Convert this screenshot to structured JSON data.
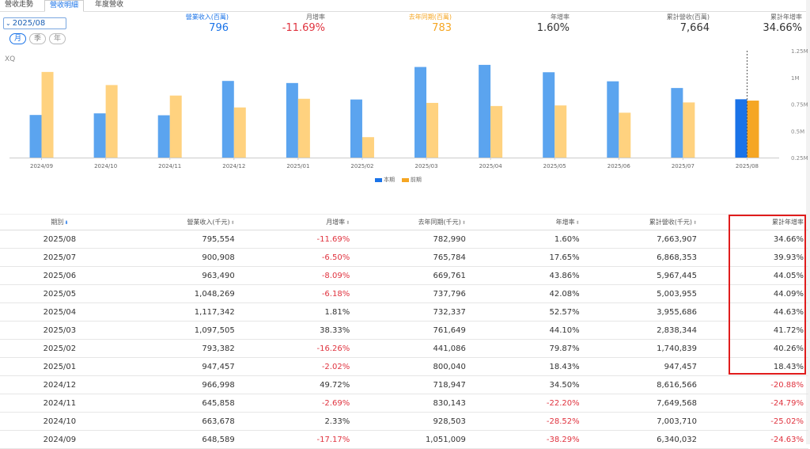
{
  "tabs": [
    "營收走勢",
    "營收明細",
    "年度營收"
  ],
  "period_select": "2025/08",
  "period_modes": [
    "月",
    "季",
    "年"
  ],
  "kpis": [
    {
      "label": "營業收入(百萬)",
      "value": "796",
      "color": "#1a73e8",
      "label_color": "#1a73e8"
    },
    {
      "label": "月增率",
      "value": "-11.69%",
      "color": "#e0333f",
      "label_color": "#666"
    },
    {
      "label": "去年同期(百萬)",
      "value": "783",
      "color": "#f5a623",
      "label_color": "#f5a623"
    },
    {
      "label": "年增率",
      "value": "1.60%",
      "color": "#333",
      "label_color": "#666"
    },
    {
      "label": "累計營收(百萬)",
      "value": "7,664",
      "color": "#333",
      "label_color": "#666"
    },
    {
      "label": "累計年增率",
      "value": "34.66%",
      "color": "#333",
      "label_color": "#666"
    }
  ],
  "xq_label": "XQ",
  "chart_data": {
    "type": "bar",
    "categories": [
      "2024/09",
      "2024/10",
      "2024/11",
      "2024/12",
      "2025/01",
      "2025/02",
      "2025/03",
      "2025/04",
      "2025/05",
      "2025/06",
      "2025/07",
      "2025/08"
    ],
    "series": [
      {
        "name": "本期",
        "color": "#5ba4ef",
        "highlight_color": "#1a73e8",
        "values": [
          648.589,
          663.678,
          645.858,
          966.998,
          947.457,
          793.382,
          1097.505,
          1117.342,
          1048.269,
          963.49,
          900.908,
          795.554
        ]
      },
      {
        "name": "前期",
        "color": "#ffd27f",
        "highlight_color": "#f5a623",
        "values": [
          1051.009,
          928.503,
          830.143,
          718.947,
          800.04,
          441.086,
          761.649,
          732.337,
          737.796,
          669.761,
          765.784,
          782.99
        ]
      }
    ],
    "y_ticks": [
      "1.25M",
      "1M",
      "0.75M",
      "0.5M",
      "0.25M"
    ],
    "y_tick_values": [
      1250,
      1000,
      750,
      500,
      250
    ],
    "ylim": [
      250,
      1250
    ],
    "highlight_index": 11
  },
  "table": {
    "headers": [
      "期別",
      "營業收入(千元)",
      "月增率",
      "去年同期(千元)",
      "年增率",
      "累計營收(千元)",
      "累計年增率"
    ],
    "rows": [
      [
        "2025/08",
        "795,554",
        "-11.69%",
        "782,990",
        "1.60%",
        "7,663,907",
        "34.66%"
      ],
      [
        "2025/07",
        "900,908",
        "-6.50%",
        "765,784",
        "17.65%",
        "6,868,353",
        "39.93%"
      ],
      [
        "2025/06",
        "963,490",
        "-8.09%",
        "669,761",
        "43.86%",
        "5,967,445",
        "44.05%"
      ],
      [
        "2025/05",
        "1,048,269",
        "-6.18%",
        "737,796",
        "42.08%",
        "5,003,955",
        "44.09%"
      ],
      [
        "2025/04",
        "1,117,342",
        "1.81%",
        "732,337",
        "52.57%",
        "3,955,686",
        "44.63%"
      ],
      [
        "2025/03",
        "1,097,505",
        "38.33%",
        "761,649",
        "44.10%",
        "2,838,344",
        "41.72%"
      ],
      [
        "2025/02",
        "793,382",
        "-16.26%",
        "441,086",
        "79.87%",
        "1,740,839",
        "40.26%"
      ],
      [
        "2025/01",
        "947,457",
        "-2.02%",
        "800,040",
        "18.43%",
        "947,457",
        "18.43%"
      ],
      [
        "2024/12",
        "966,998",
        "49.72%",
        "718,947",
        "34.50%",
        "8,616,566",
        "-20.88%"
      ],
      [
        "2024/11",
        "645,858",
        "-2.69%",
        "830,143",
        "-22.20%",
        "7,649,568",
        "-24.79%"
      ],
      [
        "2024/10",
        "663,678",
        "2.33%",
        "928,503",
        "-28.52%",
        "7,003,710",
        "-25.02%"
      ],
      [
        "2024/09",
        "648,589",
        "-17.17%",
        "1,051,009",
        "-38.29%",
        "6,340,032",
        "-24.63%"
      ]
    ]
  },
  "colors": {
    "accent": "#1a73e8",
    "negative": "#e0333f",
    "highlight_box": "#e01c1c"
  }
}
